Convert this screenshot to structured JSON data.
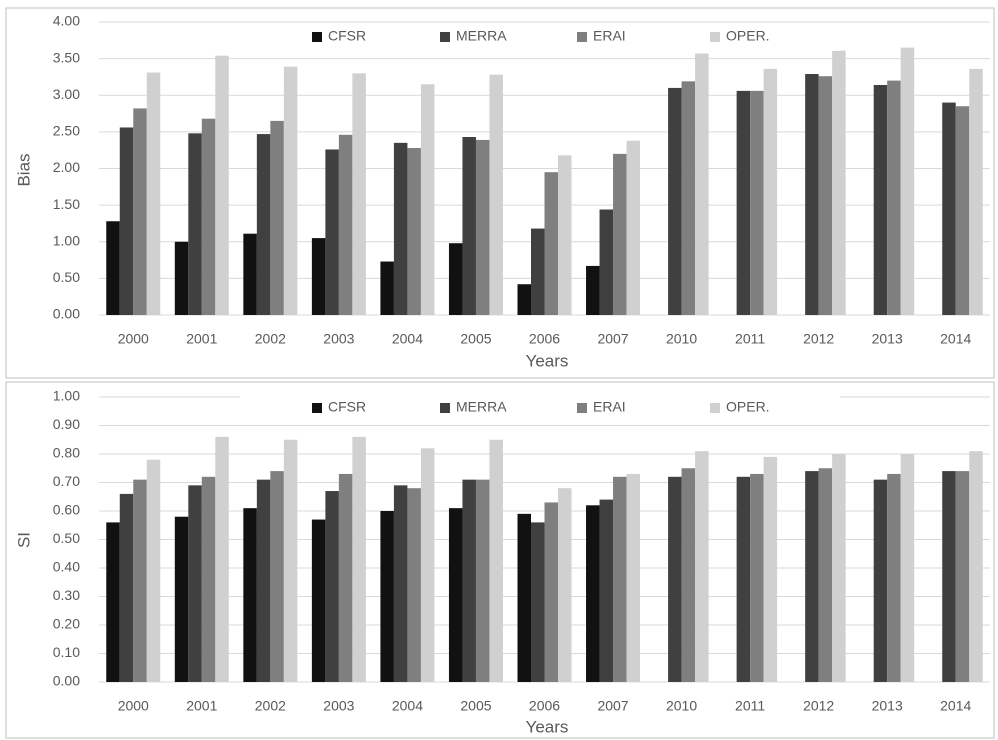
{
  "chart_data": [
    {
      "type": "bar",
      "x_label": "Years",
      "y_label": "Bias",
      "categories": [
        "2000",
        "2001",
        "2002",
        "2003",
        "2004",
        "2005",
        "2006",
        "2007",
        "2010",
        "2011",
        "2012",
        "2013",
        "2014"
      ],
      "series": [
        {
          "name": "CFSR",
          "color": "#111111",
          "values": [
            1.28,
            1.0,
            1.11,
            1.05,
            0.73,
            0.98,
            0.42,
            0.67,
            null,
            null,
            null,
            null,
            null
          ]
        },
        {
          "name": "MERRA",
          "color": "#404040",
          "values": [
            2.56,
            2.48,
            2.47,
            2.26,
            2.35,
            2.43,
            1.18,
            1.44,
            3.1,
            3.06,
            3.29,
            3.14,
            2.9
          ]
        },
        {
          "name": "ERAI",
          "color": "#7f7f7f",
          "values": [
            2.82,
            2.68,
            2.65,
            2.46,
            2.28,
            2.39,
            1.95,
            2.2,
            3.19,
            3.06,
            3.26,
            3.2,
            2.85
          ]
        },
        {
          "name": "OPER.",
          "color": "#d0d0d0",
          "values": [
            3.31,
            3.54,
            3.39,
            3.3,
            3.15,
            3.28,
            2.18,
            2.38,
            3.57,
            3.36,
            3.61,
            3.65,
            3.36
          ]
        }
      ],
      "ylim": [
        0,
        4
      ],
      "yticks": [
        {
          "value": 0,
          "label": "0.00"
        },
        {
          "value": 0.5,
          "label": "0.50"
        },
        {
          "value": 1,
          "label": "1.00"
        },
        {
          "value": 1.5,
          "label": "1.50"
        },
        {
          "value": 2,
          "label": "2.00"
        },
        {
          "value": 2.5,
          "label": "2.50"
        },
        {
          "value": 3,
          "label": "3.00"
        },
        {
          "value": 3.5,
          "label": "3.50"
        },
        {
          "value": 4,
          "label": "4.00"
        }
      ],
      "grid": true,
      "legend": "top"
    },
    {
      "type": "bar",
      "x_label": "Years",
      "y_label": "SI",
      "categories": [
        "2000",
        "2001",
        "2002",
        "2003",
        "2004",
        "2005",
        "2006",
        "2007",
        "2010",
        "2011",
        "2012",
        "2013",
        "2014"
      ],
      "series": [
        {
          "name": "CFSR",
          "color": "#111111",
          "values": [
            0.56,
            0.58,
            0.61,
            0.57,
            0.6,
            0.61,
            0.59,
            0.62,
            null,
            null,
            null,
            null,
            null
          ]
        },
        {
          "name": "MERRA",
          "color": "#404040",
          "values": [
            0.66,
            0.69,
            0.71,
            0.67,
            0.69,
            0.71,
            0.56,
            0.64,
            0.72,
            0.72,
            0.74,
            0.71,
            0.74
          ]
        },
        {
          "name": "ERAI",
          "color": "#7f7f7f",
          "values": [
            0.71,
            0.72,
            0.74,
            0.73,
            0.68,
            0.71,
            0.63,
            0.72,
            0.75,
            0.73,
            0.75,
            0.73,
            0.74
          ]
        },
        {
          "name": "OPER.",
          "color": "#d0d0d0",
          "values": [
            0.78,
            0.86,
            0.85,
            0.86,
            0.82,
            0.85,
            0.68,
            0.73,
            0.81,
            0.79,
            0.8,
            0.8,
            0.81
          ]
        }
      ],
      "ylim": [
        0,
        1
      ],
      "yticks": [
        {
          "value": 0,
          "label": "0.00"
        },
        {
          "value": 0.1,
          "label": "0.10"
        },
        {
          "value": 0.2,
          "label": "0.20"
        },
        {
          "value": 0.3,
          "label": "0.30"
        },
        {
          "value": 0.4,
          "label": "0.40"
        },
        {
          "value": 0.5,
          "label": "0.50"
        },
        {
          "value": 0.6,
          "label": "0.60"
        },
        {
          "value": 0.7,
          "label": "0.70"
        },
        {
          "value": 0.8,
          "label": "0.80"
        },
        {
          "value": 0.9,
          "label": "0.90"
        },
        {
          "value": 1,
          "label": "1.00"
        }
      ],
      "grid": true,
      "legend": "top"
    }
  ]
}
